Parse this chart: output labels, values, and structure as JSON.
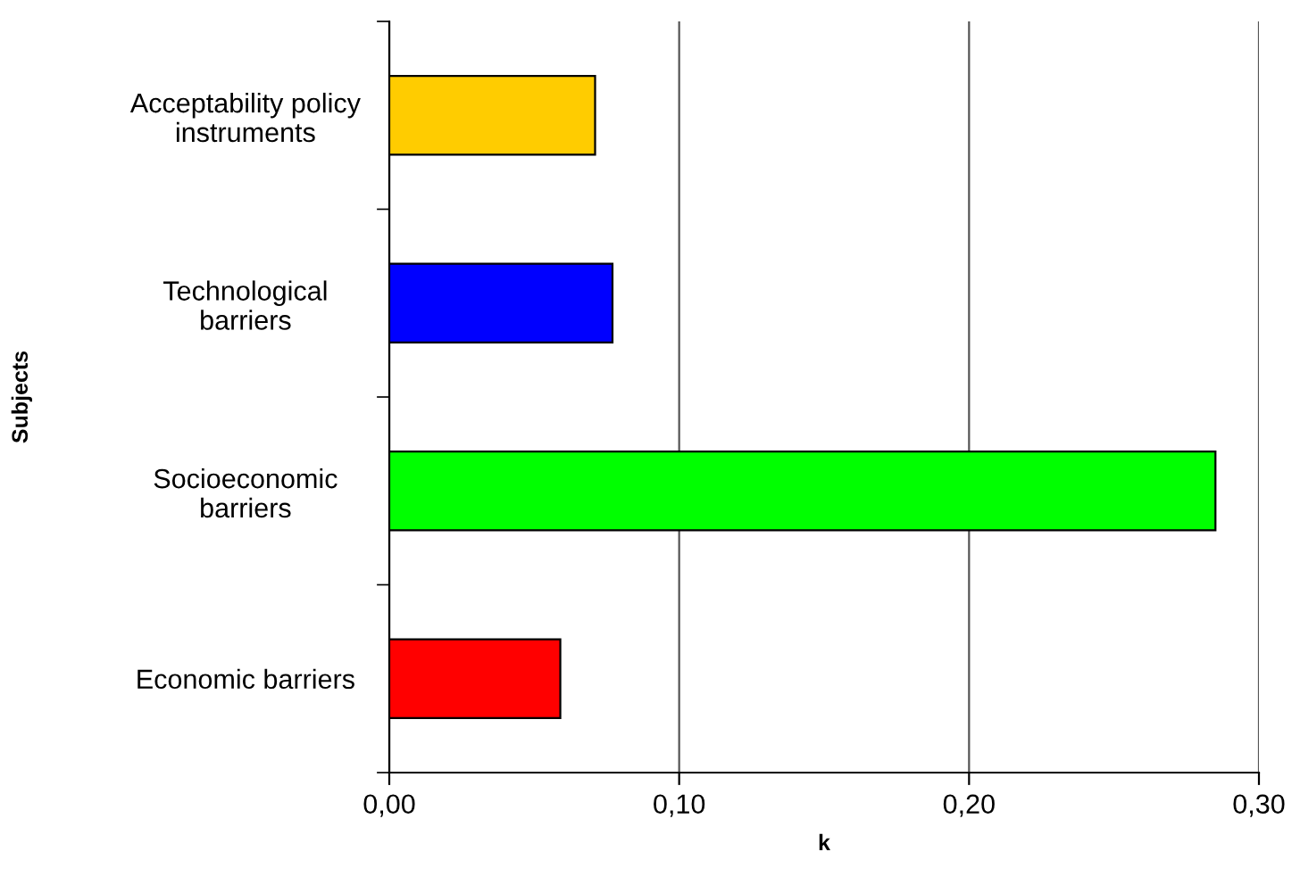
{
  "chart_data": {
    "type": "bar",
    "orientation": "horizontal",
    "xlabel": "k",
    "ylabel": "Subjects",
    "categories": [
      "Acceptability policy\ninstruments",
      "Technological\nbarriers",
      "Socioeconomic\nbarriers",
      "Economic barriers"
    ],
    "values": [
      0.071,
      0.077,
      0.285,
      0.059
    ],
    "colors": [
      "#ffcc00",
      "#0000ff",
      "#00ff00",
      "#ff0000"
    ],
    "xlim": [
      0,
      0.3
    ],
    "xticks": [
      {
        "value": 0,
        "label": "0,00"
      },
      {
        "value": 0.1,
        "label": "0,10"
      },
      {
        "value": 0.2,
        "label": "0,20"
      },
      {
        "value": 0.3,
        "label": "0,30"
      }
    ],
    "grid": "x",
    "legend": false
  }
}
